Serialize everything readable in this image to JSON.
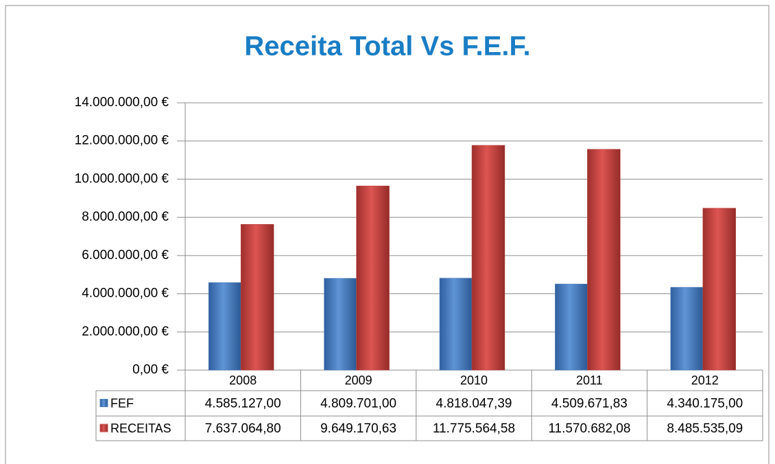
{
  "chart_data": {
    "type": "bar",
    "title": "Receita Total Vs F.E.F.",
    "categories": [
      "2008",
      "2009",
      "2010",
      "2011",
      "2012"
    ],
    "series": [
      {
        "name": "FEF",
        "color": "#4f81bd",
        "values": [
          4585127.0,
          4809701.0,
          4818047.39,
          4509671.83,
          4340175.0
        ],
        "value_labels": [
          "4.585.127,00",
          "4.809.701,00",
          "4.818.047,39",
          "4.509.671,83",
          "4.340.175,00"
        ]
      },
      {
        "name": "RECEITAS",
        "color": "#c0504d",
        "values": [
          7637064.8,
          9649170.63,
          11775564.58,
          11570682.08,
          8485535.09
        ],
        "value_labels": [
          "7.637.064,80",
          "9.649.170,63",
          "11.775.564,58",
          "11.570.682,08",
          "8.485.535,09"
        ]
      }
    ],
    "ylim": [
      0,
      14000000
    ],
    "yticks": [
      {
        "value": 0,
        "label": "0,00 €"
      },
      {
        "value": 2000000,
        "label": "2.000.000,00 €"
      },
      {
        "value": 4000000,
        "label": "4.000.000,00 €"
      },
      {
        "value": 6000000,
        "label": "6.000.000,00 €"
      },
      {
        "value": 8000000,
        "label": "8.000.000,00 €"
      },
      {
        "value": 10000000,
        "label": "10.000.000,00 €"
      },
      {
        "value": 12000000,
        "label": "12.000.000,00 €"
      },
      {
        "value": 14000000,
        "label": "14.000.000,00 €"
      }
    ],
    "grid": true
  }
}
